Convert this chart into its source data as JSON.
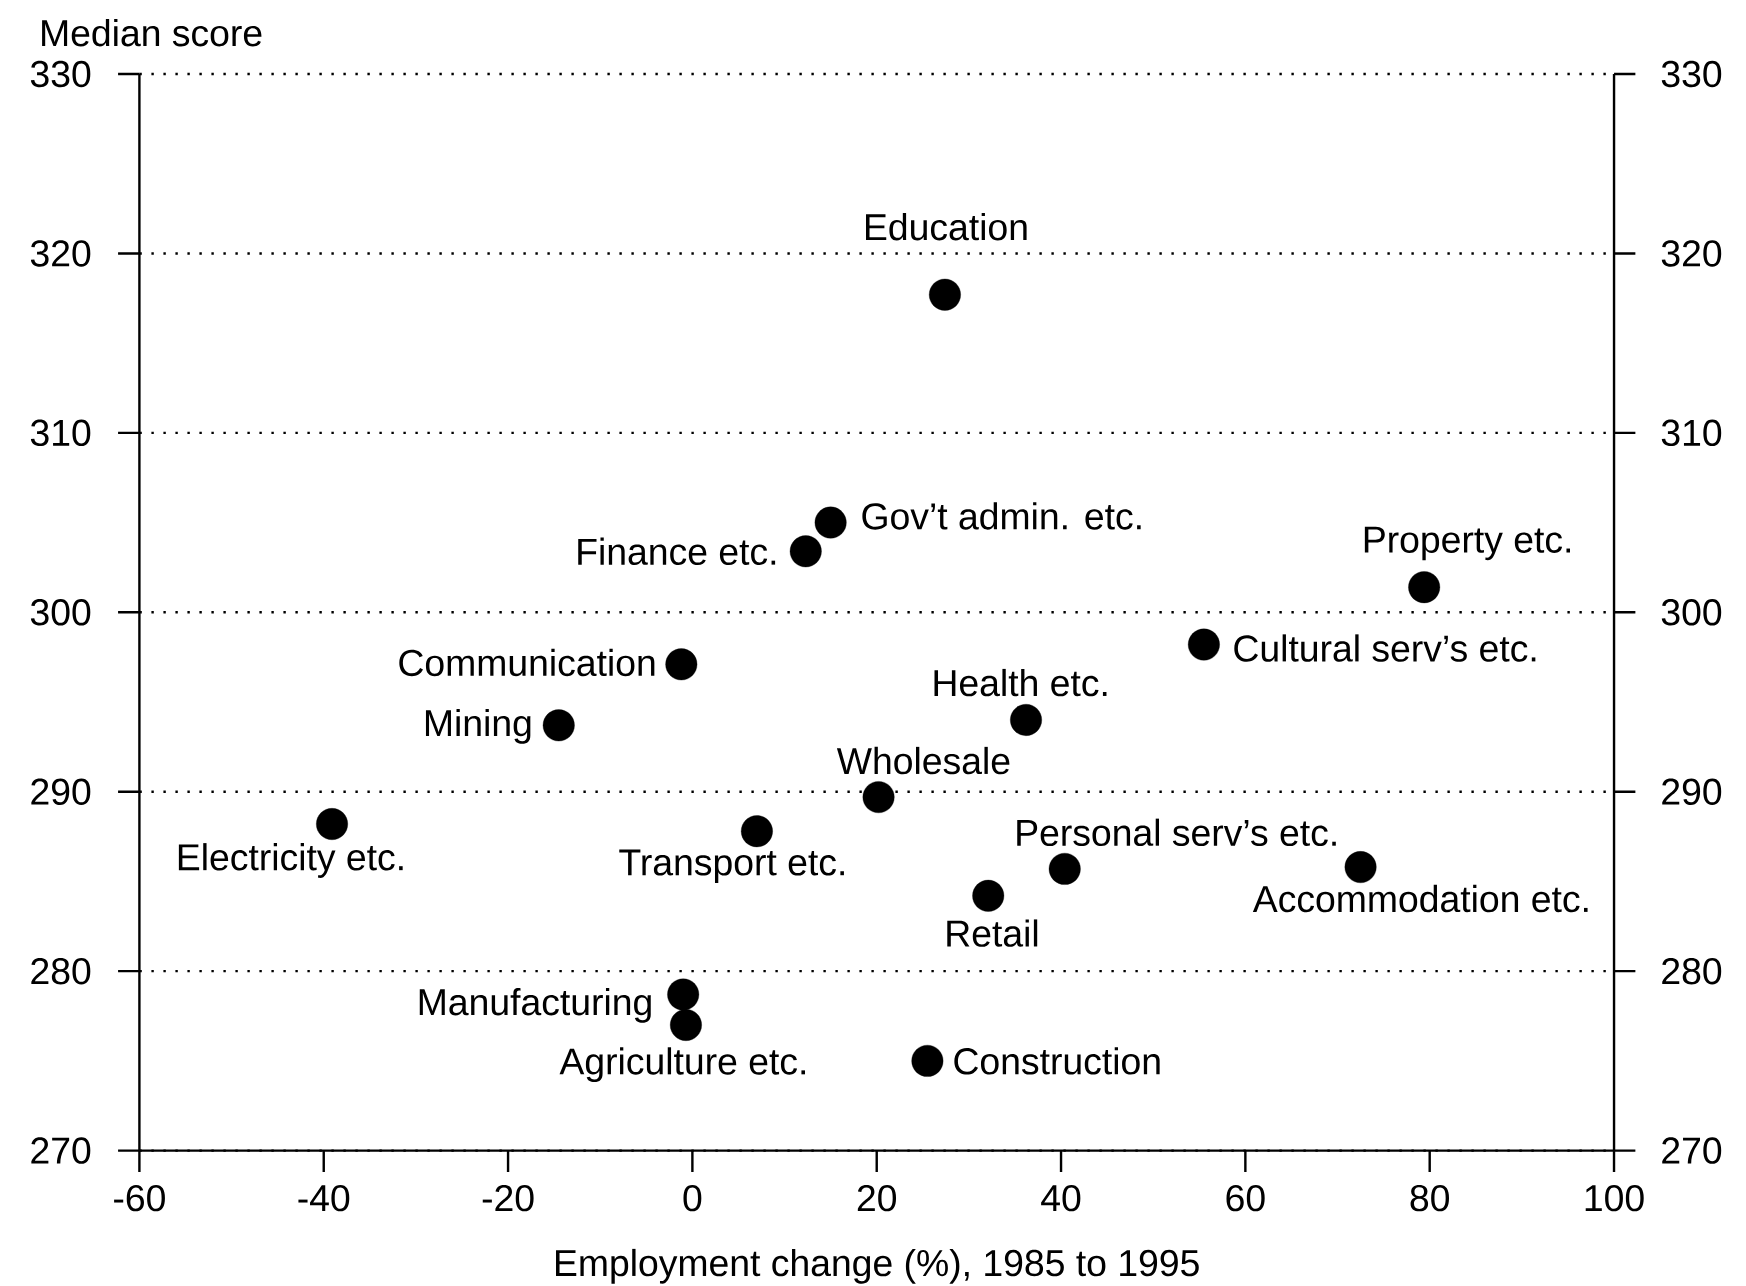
{
  "chart_data": {
    "type": "scatter",
    "xlabel": "Employment change (%), 1985 to 1995",
    "ylabel": "Median score",
    "x": [
      27.4,
      15.0,
      12.3,
      79.4,
      55.5,
      36.2,
      20.2,
      40.4,
      72.5,
      32.1,
      25.5,
      -1.2,
      -14.5,
      -39.1,
      7.0,
      -1.0,
      -0.7
    ],
    "values": [
      317.7,
      305.0,
      303.4,
      301.4,
      298.2,
      294.0,
      289.7,
      285.7,
      285.8,
      284.2,
      275.0,
      297.1,
      293.7,
      288.2,
      287.8,
      278.7,
      277.0
    ],
    "color": "#000000",
    "marker": "circle",
    "xlim": [
      -60,
      100
    ],
    "xticks": [
      -60,
      -40,
      -20,
      0,
      20,
      40,
      60,
      80,
      100
    ],
    "ylim": [
      270,
      330
    ],
    "yticks": [
      270,
      280,
      290,
      300,
      310,
      320,
      330
    ],
    "y2lim": [
      270,
      330
    ],
    "y2ticks": [
      270,
      280,
      290,
      300,
      310,
      320,
      330
    ],
    "grid": "y",
    "annotations": [
      {
        "text": "Education",
        "x": 27.4,
        "y": 317.7
      },
      {
        "text": "Gov’t admin. etc.",
        "x": 15.0,
        "y": 305.0
      },
      {
        "text": "Finance etc.",
        "x": 12.3,
        "y": 303.4
      },
      {
        "text": "Property etc.",
        "x": 79.4,
        "y": 301.4
      },
      {
        "text": "Cultural serv’s etc.",
        "x": 55.5,
        "y": 298.2
      },
      {
        "text": "Health etc.",
        "x": 36.2,
        "y": 294.0
      },
      {
        "text": "Wholesale",
        "x": 20.2,
        "y": 289.7
      },
      {
        "text": "Personal serv’s etc.",
        "x": 40.4,
        "y": 285.7
      },
      {
        "text": "Accommodation etc.",
        "x": 72.5,
        "y": 285.8
      },
      {
        "text": "Retail",
        "x": 32.1,
        "y": 284.2
      },
      {
        "text": "Construction",
        "x": 25.5,
        "y": 275.0
      },
      {
        "text": "Communication",
        "x": -1.2,
        "y": 297.1
      },
      {
        "text": "Mining",
        "x": -14.5,
        "y": 293.7
      },
      {
        "text": "Electricity etc.",
        "x": -39.1,
        "y": 288.2
      },
      {
        "text": "Transport etc.",
        "x": 7.0,
        "y": 287.8
      },
      {
        "text": "Manufacturing",
        "x": -1.0,
        "y": 278.7
      },
      {
        "text": "Agriculture etc.",
        "x": -0.7,
        "y": 277.0
      }
    ]
  }
}
